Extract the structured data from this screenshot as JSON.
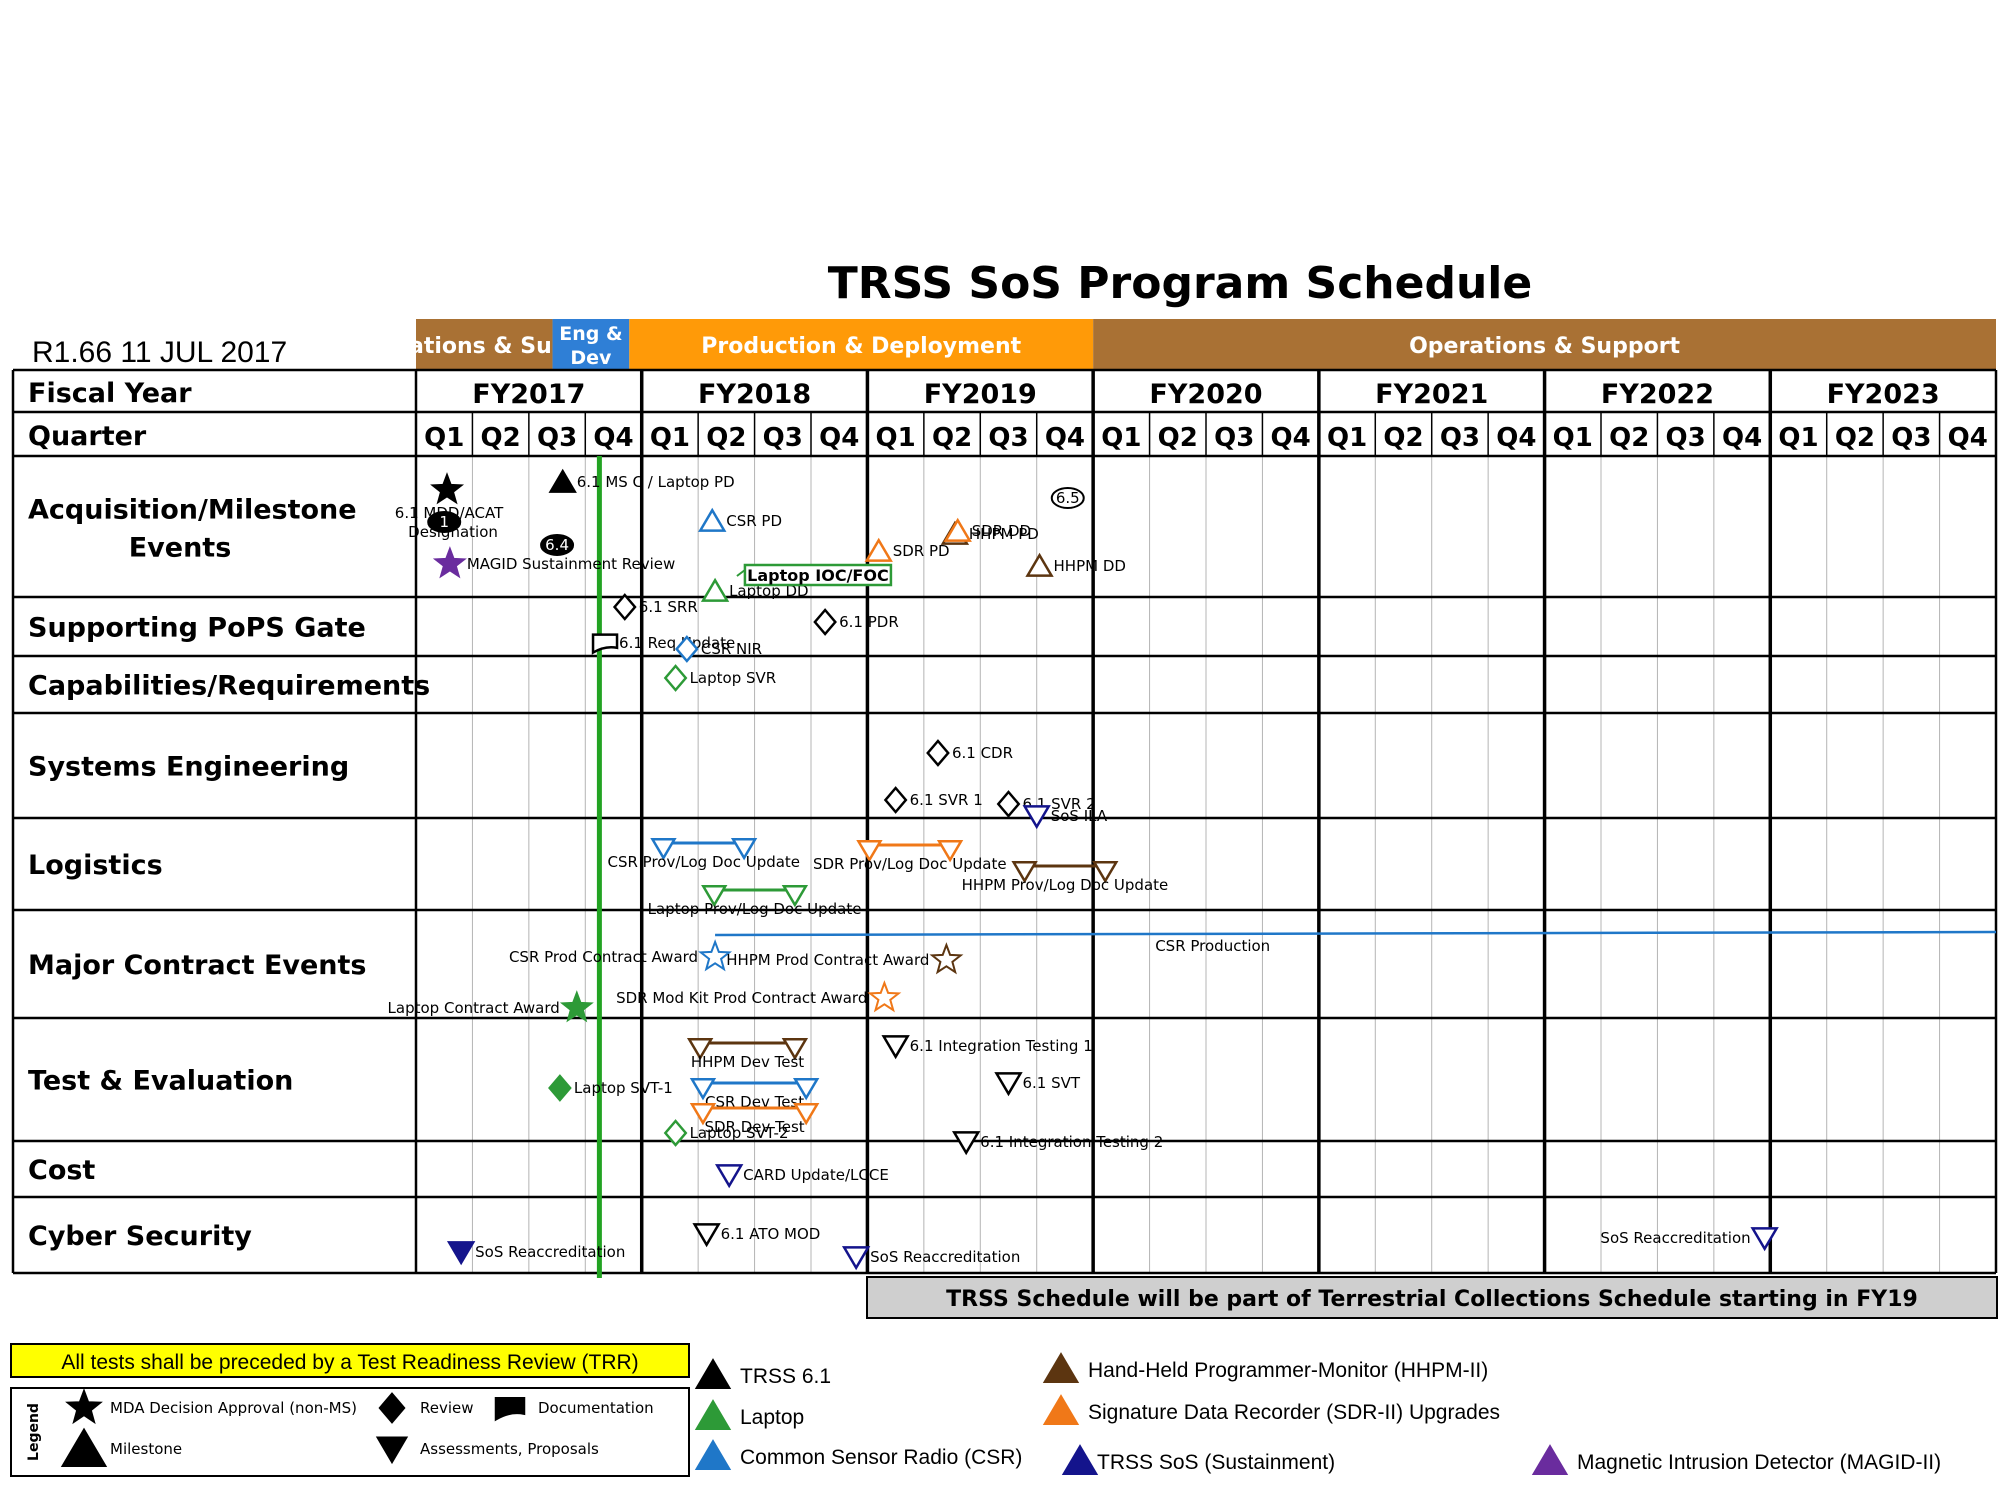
{
  "title": "TRSS SoS Program Schedule",
  "revision": "R1.66 11 JUL 2017",
  "header": {
    "fiscal_year_label": "Fiscal Year",
    "quarter_label": "Quarter",
    "quarters": [
      "Q1",
      "Q2",
      "Q3",
      "Q4"
    ],
    "years": [
      "FY2017",
      "FY2018",
      "FY2019",
      "FY2020",
      "FY2021",
      "FY2022",
      "FY2023"
    ]
  },
  "phases": [
    {
      "label": "Operations & Support",
      "start": 0,
      "end": 2.42,
      "color": "#a97134"
    },
    {
      "label": "Eng & Dev",
      "start": 2.42,
      "end": 3.78,
      "color": "#2f7fd6"
    },
    {
      "label": "Production & Deployment",
      "start": 3.78,
      "end": 12.0,
      "color": "#ff9a08"
    },
    {
      "label": "Operations & Support",
      "start": 12.0,
      "end": 28,
      "color": "#a97134"
    }
  ],
  "rows": [
    {
      "label": "Acquisition/Milestone Events",
      "center": true
    },
    {
      "label": "Supporting PoPS Gate"
    },
    {
      "label": "Capabilities/Requirements"
    },
    {
      "label": "Systems Engineering"
    },
    {
      "label": "Logistics"
    },
    {
      "label": "Major Contract Events"
    },
    {
      "label": "Test & Evaluation"
    },
    {
      "label": "Cost"
    },
    {
      "label": "Cyber Security"
    }
  ],
  "colors": {
    "trss61": "#000000",
    "laptop": "#2d9a37",
    "csr": "#1f77c8",
    "hhpm": "#5c3510",
    "sdr": "#f07818",
    "sustain": "#14148c",
    "magid": "#6a2c9e",
    "status_line": "#22a322"
  },
  "status_line_q": 3.25,
  "chart_data": {
    "type": "table",
    "title": "TRSS SoS Program Schedule",
    "x_axis": "quarters from FY2017 Q1 (0) to FY2023 Q4 (28)",
    "events": [
      {
        "row": 0,
        "q": 0.55,
        "shape": "star",
        "fill": true,
        "color": "trss61",
        "text": "6.1 MDD/ACAT Designation",
        "lpos": "below2"
      },
      {
        "row": 0,
        "q": 0.6,
        "shape": "star",
        "fill": true,
        "color": "magid",
        "text": "MAGID Sustainment Review",
        "lpos": "right"
      },
      {
        "row": 0,
        "q": 2.6,
        "shape": "tri-up",
        "fill": true,
        "color": "trss61",
        "text": "6.1 MS C / Laptop PD",
        "lpos": "right"
      },
      {
        "row": 0,
        "q": 5.25,
        "shape": "tri-up",
        "fill": false,
        "color": "csr",
        "text": "CSR PD",
        "lpos": "right"
      },
      {
        "row": 0,
        "q": 5.3,
        "shape": "tri-up",
        "fill": false,
        "color": "laptop",
        "text": "Laptop DD",
        "lpos": "right"
      },
      {
        "row": 0,
        "q": 8.2,
        "shape": "tri-up",
        "fill": false,
        "color": "sdr",
        "text": "SDR PD",
        "lpos": "right"
      },
      {
        "row": 0,
        "q": 9.55,
        "shape": "tri-up",
        "fill": false,
        "color": "hhpm",
        "text": "HHPM PD",
        "lpos": "right"
      },
      {
        "row": 0,
        "q": 9.6,
        "shape": "tri-up",
        "fill": false,
        "color": "sdr",
        "text": "SDR DD",
        "lpos": "right"
      },
      {
        "row": 0,
        "q": 11.05,
        "shape": "tri-up",
        "fill": false,
        "color": "hhpm",
        "text": "HHPM DD",
        "lpos": "right"
      },
      {
        "row": 1,
        "q": 0.5,
        "shape": "oval",
        "fill": true,
        "color": "trss61",
        "text": "1"
      },
      {
        "row": 1,
        "q": 2.5,
        "shape": "oval",
        "fill": true,
        "color": "trss61",
        "text": "6.4"
      },
      {
        "row": 1,
        "q": 11.55,
        "shape": "oval",
        "fill": false,
        "color": "trss61",
        "text": "6.5"
      },
      {
        "row": 2,
        "q": 3.35,
        "shape": "doc",
        "fill": false,
        "color": "trss61",
        "text": "6.1 Req Update",
        "lpos": "right"
      },
      {
        "row": 3,
        "q": 3.7,
        "shape": "diamond",
        "fill": false,
        "color": "trss61",
        "text": "6.1 SRR",
        "lpos": "right"
      },
      {
        "row": 3,
        "q": 4.8,
        "shape": "diamond",
        "fill": false,
        "color": "csr",
        "text": "CSR NIR",
        "lpos": "right"
      },
      {
        "row": 3,
        "q": 4.6,
        "shape": "diamond",
        "fill": false,
        "color": "laptop",
        "text": "Laptop SVR",
        "lpos": "right"
      },
      {
        "row": 3,
        "q": 7.25,
        "shape": "diamond",
        "fill": false,
        "color": "trss61",
        "text": "6.1 PDR",
        "lpos": "right"
      },
      {
        "row": 3,
        "q": 9.25,
        "shape": "diamond",
        "fill": false,
        "color": "trss61",
        "text": "6.1 CDR",
        "lpos": "right"
      },
      {
        "row": 3,
        "q": 8.5,
        "shape": "diamond",
        "fill": false,
        "color": "trss61",
        "text": "6.1 SVR 1",
        "lpos": "right"
      },
      {
        "row": 3,
        "q": 10.5,
        "shape": "diamond",
        "fill": false,
        "color": "trss61",
        "text": "6.1 SVR 2",
        "lpos": "right"
      },
      {
        "row": 4,
        "q": 11.0,
        "shape": "tri-down",
        "fill": false,
        "color": "sustain",
        "text": "SoS ILA",
        "lpos": "right"
      },
      {
        "row": 5,
        "q": 5.3,
        "shape": "star",
        "fill": false,
        "color": "csr",
        "text": "CSR Prod Contract Award",
        "lpos": "left"
      },
      {
        "row": 5,
        "q": 9.4,
        "shape": "star",
        "fill": false,
        "color": "hhpm",
        "text": "HHPM Prod Contract Award",
        "lpos": "left"
      },
      {
        "row": 5,
        "q": 8.3,
        "shape": "star",
        "fill": false,
        "color": "sdr",
        "text": "SDR Mod Kit Prod Contract Award",
        "lpos": "left"
      },
      {
        "row": 5,
        "q": 2.85,
        "shape": "star",
        "fill": true,
        "color": "laptop",
        "text": "Laptop Contract Award",
        "lpos": "left"
      },
      {
        "row": 6,
        "q": 8.5,
        "shape": "tri-down",
        "fill": false,
        "color": "trss61",
        "text": "6.1 Integration Testing 1",
        "lpos": "right"
      },
      {
        "row": 6,
        "q": 10.5,
        "shape": "tri-down",
        "fill": false,
        "color": "trss61",
        "text": "6.1 SVT",
        "lpos": "right"
      },
      {
        "row": 6,
        "q": 9.75,
        "shape": "tri-down",
        "fill": false,
        "color": "trss61",
        "text": "6.1 Integration Testing 2",
        "lpos": "right"
      },
      {
        "row": 6,
        "q": 2.55,
        "shape": "diamond",
        "fill": true,
        "color": "laptop",
        "text": "Laptop SVT-1",
        "lpos": "right"
      },
      {
        "row": 6,
        "q": 4.6,
        "shape": "diamond",
        "fill": false,
        "color": "laptop",
        "text": "Laptop SVT-2",
        "lpos": "right"
      },
      {
        "row": 7,
        "q": 5.55,
        "shape": "tri-down",
        "fill": false,
        "color": "sustain",
        "text": "CARD Update/LCCE",
        "lpos": "right"
      },
      {
        "row": 8,
        "q": 0.8,
        "shape": "tri-down",
        "fill": true,
        "color": "sustain",
        "text": "SoS Reaccreditation",
        "lpos": "right"
      },
      {
        "row": 8,
        "q": 5.15,
        "shape": "tri-down",
        "fill": false,
        "color": "trss61",
        "text": "6.1 ATO MOD",
        "lpos": "right"
      },
      {
        "row": 8,
        "q": 7.8,
        "shape": "tri-down",
        "fill": false,
        "color": "sustain",
        "text": "SoS Reaccreditation",
        "lpos": "right"
      },
      {
        "row": 8,
        "q": 23.9,
        "shape": "tri-down",
        "fill": false,
        "color": "sustain",
        "text": "SoS Reaccreditation",
        "lpos": "left"
      }
    ],
    "spans": [
      {
        "row": 4,
        "q1": 4.35,
        "q2": 5.85,
        "color": "csr",
        "text": "CSR Prov/Log Doc Update"
      },
      {
        "row": 4,
        "q1": 5.25,
        "q2": 6.75,
        "color": "laptop",
        "text": "Laptop Prov/Log Doc Update"
      },
      {
        "row": 4,
        "q1": 8.0,
        "q2": 9.5,
        "color": "sdr",
        "text": "SDR Prov/Log Doc Update"
      },
      {
        "row": 4,
        "q1": 10.75,
        "q2": 12.25,
        "color": "hhpm",
        "text": "HHPM Prov/Log Doc Update"
      },
      {
        "row": 6,
        "q1": 5.0,
        "q2": 6.75,
        "color": "hhpm",
        "text": "HHPM Dev Test"
      },
      {
        "row": 6,
        "q1": 5.05,
        "q2": 6.95,
        "color": "csr",
        "text": "CSR Dev Test"
      },
      {
        "row": 6,
        "q1": 5.05,
        "q2": 6.95,
        "color": "sdr",
        "text": "SDR Dev Test"
      }
    ],
    "callouts": [
      {
        "row": 0,
        "q": 5.9,
        "text": "Laptop IOC/FOC",
        "color": "laptop"
      }
    ],
    "production_line": {
      "row": 5,
      "q1": 5.3,
      "q2": 28,
      "color": "csr",
      "text": "CSR Production"
    }
  },
  "banner": "TRSS Schedule will be part of Terrestrial Collections Schedule starting in FY19",
  "trr_note": "All tests shall be preceded by a Test Readiness Review (TRR)",
  "legend": {
    "title": "Legend",
    "shapes": [
      {
        "shape": "star",
        "text": "MDA Decision Approval (non-MS)"
      },
      {
        "shape": "tri-up",
        "text": "Milestone"
      },
      {
        "shape": "diamond",
        "text": "Review"
      },
      {
        "shape": "tri-down",
        "text": "Assessments, Proposals"
      },
      {
        "shape": "doc",
        "text": "Documentation"
      }
    ],
    "colors": [
      {
        "color": "trss61",
        "text": "TRSS 6.1"
      },
      {
        "color": "laptop",
        "text": "Laptop"
      },
      {
        "color": "csr",
        "text": "Common Sensor Radio (CSR)"
      },
      {
        "color": "hhpm",
        "text": "Hand-Held Programmer-Monitor (HHPM-II)"
      },
      {
        "color": "sdr",
        "text": "Signature Data Recorder (SDR-II) Upgrades"
      },
      {
        "color": "sustain",
        "text": "TRSS SoS (Sustainment)"
      },
      {
        "color": "magid",
        "text": "Magnetic Intrusion Detector (MAGID-II)"
      }
    ]
  }
}
